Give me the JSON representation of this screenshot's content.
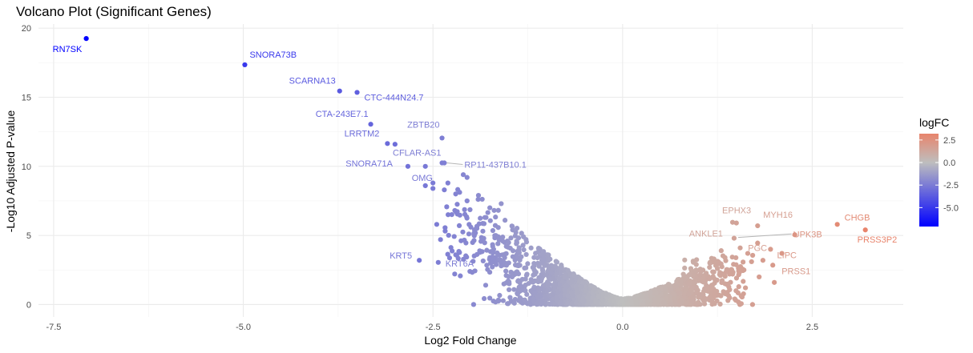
{
  "chart_data": {
    "type": "scatter",
    "title": "Volcano Plot (Significant Genes)",
    "xlabel": "Log2 Fold Change",
    "ylabel": "-Log10 Adjusted P-value",
    "xlim": [
      -7.7,
      3.7
    ],
    "ylim": [
      -0.9,
      20.3
    ],
    "x_ticks": [
      -7.5,
      -5.0,
      -2.5,
      0.0,
      2.5
    ],
    "x_tick_labels": [
      "-7.5",
      "-5.0",
      "-2.5",
      "0.0",
      "2.5"
    ],
    "y_ticks": [
      0,
      5,
      10,
      15,
      20
    ],
    "y_tick_labels": [
      "0",
      "5",
      "10",
      "15",
      "20"
    ],
    "grid": true,
    "color_by": "logFC",
    "color_scale": {
      "low": "#0000ff",
      "mid": "#bebebe",
      "high": "#e8846c",
      "midpoint": 0,
      "range": [
        -7.1,
        3.2
      ]
    },
    "legend": {
      "title": "logFC",
      "position": "right",
      "ticks": [
        2.5,
        0.0,
        -2.5,
        -5.0
      ],
      "tick_labels": [
        "2.5",
        "0.0",
        "-2.5",
        "-5.0"
      ]
    },
    "labeled_genes": [
      {
        "name": "RN7SK",
        "x": -7.07,
        "y": 19.25
      },
      {
        "name": "SNORA73B",
        "x": -4.98,
        "y": 17.35
      },
      {
        "name": "SCARNA13",
        "x": -3.73,
        "y": 15.45
      },
      {
        "name": "CTC-444N24.7",
        "x": -3.5,
        "y": 15.35
      },
      {
        "name": "CTA-243E7.1",
        "x": -3.32,
        "y": 13.05
      },
      {
        "name": "LRRTM2",
        "x": -3.1,
        "y": 11.65
      },
      {
        "name": "ZBTB20",
        "x": -2.38,
        "y": 12.05
      },
      {
        "name": "CFLAR-AS1",
        "x": -2.38,
        "y": 10.25
      },
      {
        "name": "RP11-437B10.1",
        "x": -2.35,
        "y": 10.25
      },
      {
        "name": "SNORA71A",
        "x": -2.83,
        "y": 10.0
      },
      {
        "name": "OMG",
        "x": -2.6,
        "y": 10.0
      },
      {
        "name": "KRT5",
        "x": -2.68,
        "y": 3.2
      },
      {
        "name": "KRT6A",
        "x": -2.43,
        "y": 3.05
      },
      {
        "name": "EPHX3",
        "x": 1.45,
        "y": 5.95
      },
      {
        "name": "MYH16",
        "x": 1.78,
        "y": 5.7
      },
      {
        "name": "UPK3B",
        "x": 2.27,
        "y": 5.05
      },
      {
        "name": "CHGB",
        "x": 2.83,
        "y": 5.8
      },
      {
        "name": "PRSS3P2",
        "x": 3.2,
        "y": 5.4
      },
      {
        "name": "ANKLE1",
        "x": 1.47,
        "y": 4.8
      },
      {
        "name": "PGC",
        "x": 1.78,
        "y": 4.45
      },
      {
        "name": "LIPC",
        "x": 2.1,
        "y": 3.7
      },
      {
        "name": "PRSS1",
        "x": 1.98,
        "y": 2.85
      }
    ],
    "extra_points": [
      {
        "x": -3.0,
        "y": 11.6
      },
      {
        "x": -2.1,
        "y": 9.4
      },
      {
        "x": -2.05,
        "y": 9.2
      },
      {
        "x": -2.5,
        "y": 8.8
      },
      {
        "x": -2.5,
        "y": 8.4
      },
      {
        "x": -2.35,
        "y": 8.3
      },
      {
        "x": -2.6,
        "y": 8.6
      },
      {
        "x": -2.2,
        "y": 8.0
      },
      {
        "x": -2.05,
        "y": 7.5
      },
      {
        "x": -1.9,
        "y": 7.9
      },
      {
        "x": -1.6,
        "y": 7.3
      },
      {
        "x": -1.75,
        "y": 7.0
      },
      {
        "x": -2.45,
        "y": 5.8
      },
      {
        "x": -2.0,
        "y": 5.6
      },
      {
        "x": -2.3,
        "y": 6.5
      },
      {
        "x": -1.8,
        "y": 6.3
      },
      {
        "x": -2.2,
        "y": 3.6
      },
      {
        "x": -2.4,
        "y": 4.7
      },
      {
        "x": -1.7,
        "y": 4.0
      },
      {
        "x": -1.6,
        "y": 2.8
      },
      {
        "x": -1.75,
        "y": 3.4
      },
      {
        "x": -1.55,
        "y": 6.1
      },
      {
        "x": -1.45,
        "y": 5.4
      },
      {
        "x": -1.4,
        "y": 4.4
      },
      {
        "x": 1.3,
        "y": 3.9
      },
      {
        "x": 1.55,
        "y": 4.1
      },
      {
        "x": 1.65,
        "y": 3.7
      },
      {
        "x": 1.85,
        "y": 3.2
      },
      {
        "x": 1.95,
        "y": 4.0
      },
      {
        "x": 2.0,
        "y": 1.6
      },
      {
        "x": 1.8,
        "y": 2.0
      },
      {
        "x": 1.6,
        "y": 2.5
      },
      {
        "x": 1.7,
        "y": 3.1
      },
      {
        "x": 1.35,
        "y": 3.4
      },
      {
        "x": 1.15,
        "y": 3.0
      },
      {
        "x": 1.25,
        "y": 2.6
      },
      {
        "x": 1.45,
        "y": 2.2
      },
      {
        "x": 1.5,
        "y": 5.9
      }
    ],
    "cloud": {
      "point_count": 2200,
      "x_range": [
        -2.0,
        1.8
      ],
      "note": "dense cloud of non-labeled genes forming the volcano shape"
    },
    "label_text_color_rule": "labels tinted by point color"
  }
}
